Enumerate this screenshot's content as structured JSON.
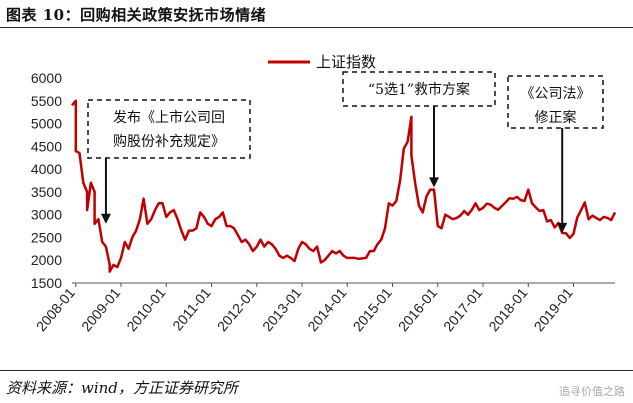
{
  "figure": {
    "title": "图表 10：回购相关政策安抚市场情绪",
    "source": "资料来源：wind，方正证券研究所",
    "watermark": "追寻价值之路"
  },
  "chart_data": {
    "type": "line",
    "series": [
      {
        "name": "上证指数",
        "color": "#c00000",
        "points": [
          [
            "2007-12",
            5400
          ],
          [
            "2008-01",
            5500
          ],
          [
            "2008-01",
            4400
          ],
          [
            "2008-02",
            4350
          ],
          [
            "2008-03",
            3700
          ],
          [
            "2008-04",
            3500
          ],
          [
            "2008-04",
            3100
          ],
          [
            "2008-05",
            3700
          ],
          [
            "2008-06",
            3500
          ],
          [
            "2008-06",
            2800
          ],
          [
            "2008-07",
            2900
          ],
          [
            "2008-08",
            2400
          ],
          [
            "2008-09",
            2300
          ],
          [
            "2008-10",
            1900
          ],
          [
            "2008-10",
            1750
          ],
          [
            "2008-11",
            1900
          ],
          [
            "2008-12",
            1850
          ],
          [
            "2009-01",
            2050
          ],
          [
            "2009-02",
            2400
          ],
          [
            "2009-03",
            2250
          ],
          [
            "2009-04",
            2500
          ],
          [
            "2009-05",
            2650
          ],
          [
            "2009-06",
            2900
          ],
          [
            "2009-07",
            3350
          ],
          [
            "2009-08",
            2800
          ],
          [
            "2009-09",
            2900
          ],
          [
            "2009-10",
            3100
          ],
          [
            "2009-11",
            3250
          ],
          [
            "2009-12",
            3250
          ],
          [
            "2010-01",
            2950
          ],
          [
            "2010-02",
            3050
          ],
          [
            "2010-03",
            3100
          ],
          [
            "2010-04",
            2900
          ],
          [
            "2010-05",
            2650
          ],
          [
            "2010-06",
            2450
          ],
          [
            "2010-07",
            2650
          ],
          [
            "2010-08",
            2650
          ],
          [
            "2010-09",
            2700
          ],
          [
            "2010-10",
            3050
          ],
          [
            "2010-11",
            2950
          ],
          [
            "2010-12",
            2800
          ],
          [
            "2011-01",
            2750
          ],
          [
            "2011-02",
            2900
          ],
          [
            "2011-03",
            2950
          ],
          [
            "2011-04",
            3050
          ],
          [
            "2011-05",
            2750
          ],
          [
            "2011-06",
            2750
          ],
          [
            "2011-07",
            2700
          ],
          [
            "2011-08",
            2550
          ],
          [
            "2011-09",
            2400
          ],
          [
            "2011-10",
            2450
          ],
          [
            "2011-11",
            2350
          ],
          [
            "2011-12",
            2200
          ],
          [
            "2012-01",
            2300
          ],
          [
            "2012-02",
            2450
          ],
          [
            "2012-03",
            2300
          ],
          [
            "2012-04",
            2400
          ],
          [
            "2012-05",
            2350
          ],
          [
            "2012-06",
            2250
          ],
          [
            "2012-07",
            2100
          ],
          [
            "2012-08",
            2050
          ],
          [
            "2012-09",
            2100
          ],
          [
            "2012-10",
            2050
          ],
          [
            "2012-11",
            1980
          ],
          [
            "2012-12",
            2250
          ],
          [
            "2013-01",
            2400
          ],
          [
            "2013-02",
            2350
          ],
          [
            "2013-03",
            2250
          ],
          [
            "2013-04",
            2200
          ],
          [
            "2013-05",
            2300
          ],
          [
            "2013-06",
            1950
          ],
          [
            "2013-07",
            2000
          ],
          [
            "2013-08",
            2100
          ],
          [
            "2013-09",
            2200
          ],
          [
            "2013-10",
            2150
          ],
          [
            "2013-11",
            2200
          ],
          [
            "2013-12",
            2100
          ],
          [
            "2014-01",
            2050
          ],
          [
            "2014-02",
            2050
          ],
          [
            "2014-03",
            2050
          ],
          [
            "2014-04",
            2030
          ],
          [
            "2014-05",
            2040
          ],
          [
            "2014-06",
            2050
          ],
          [
            "2014-07",
            2200
          ],
          [
            "2014-08",
            2200
          ],
          [
            "2014-09",
            2350
          ],
          [
            "2014-10",
            2450
          ],
          [
            "2014-11",
            2700
          ],
          [
            "2014-12",
            3250
          ],
          [
            "2015-01",
            3200
          ],
          [
            "2015-02",
            3300
          ],
          [
            "2015-03",
            3750
          ],
          [
            "2015-04",
            4450
          ],
          [
            "2015-05",
            4600
          ],
          [
            "2015-06",
            5150
          ],
          [
            "2015-06",
            4300
          ],
          [
            "2015-07",
            3700
          ],
          [
            "2015-08",
            3200
          ],
          [
            "2015-09",
            3050
          ],
          [
            "2015-10",
            3400
          ],
          [
            "2015-11",
            3550
          ],
          [
            "2015-12",
            3550
          ],
          [
            "2016-01",
            2750
          ],
          [
            "2016-02",
            2700
          ],
          [
            "2016-03",
            3000
          ],
          [
            "2016-04",
            2950
          ],
          [
            "2016-05",
            2900
          ],
          [
            "2016-06",
            2930
          ],
          [
            "2016-07",
            2980
          ],
          [
            "2016-08",
            3080
          ],
          [
            "2016-09",
            3000
          ],
          [
            "2016-10",
            3100
          ],
          [
            "2016-11",
            3250
          ],
          [
            "2016-12",
            3100
          ],
          [
            "2017-01",
            3150
          ],
          [
            "2017-02",
            3240
          ],
          [
            "2017-03",
            3220
          ],
          [
            "2017-04",
            3150
          ],
          [
            "2017-05",
            3110
          ],
          [
            "2017-06",
            3190
          ],
          [
            "2017-07",
            3270
          ],
          [
            "2017-08",
            3360
          ],
          [
            "2017-09",
            3350
          ],
          [
            "2017-10",
            3390
          ],
          [
            "2017-11",
            3320
          ],
          [
            "2017-12",
            3300
          ],
          [
            "2018-01",
            3550
          ],
          [
            "2018-02",
            3250
          ],
          [
            "2018-03",
            3160
          ],
          [
            "2018-04",
            3080
          ],
          [
            "2018-05",
            3100
          ],
          [
            "2018-06",
            2850
          ],
          [
            "2018-07",
            2880
          ],
          [
            "2018-08",
            2720
          ],
          [
            "2018-09",
            2820
          ],
          [
            "2018-10",
            2600
          ],
          [
            "2018-11",
            2590
          ],
          [
            "2018-12",
            2490
          ],
          [
            "2019-01",
            2580
          ],
          [
            "2019-02",
            2940
          ],
          [
            "2019-03",
            3100
          ],
          [
            "2019-04",
            3270
          ],
          [
            "2019-05",
            2900
          ],
          [
            "2019-06",
            2980
          ],
          [
            "2019-07",
            2930
          ],
          [
            "2019-08",
            2880
          ],
          [
            "2019-09",
            2950
          ],
          [
            "2019-10",
            2930
          ],
          [
            "2019-11",
            2880
          ],
          [
            "2019-12",
            3050
          ]
        ]
      }
    ],
    "xlabel": "",
    "ylabel": "",
    "ylim": [
      1500,
      6000
    ],
    "yticks": [
      1500,
      2000,
      2500,
      3000,
      3500,
      4000,
      4500,
      5000,
      5500,
      6000
    ],
    "xlim": [
      "2007-12",
      "2019-12"
    ],
    "xticks": [
      "2008-01",
      "2009-01",
      "2010-01",
      "2011-01",
      "2012-01",
      "2013-01",
      "2014-01",
      "2015-01",
      "2016-01",
      "2017-01",
      "2018-01",
      "2019-01"
    ],
    "legend": {
      "position": "top-center",
      "label": "上证指数"
    },
    "grid": false,
    "annotations": [
      {
        "lines": [
          "发布《上市公司回",
          "购股份补充规定》"
        ],
        "target_date": "2008-09",
        "target_value": 2800
      },
      {
        "lines": [
          "“5选1”救市方案"
        ],
        "target_date": "2015-12",
        "target_value": 3600
      },
      {
        "lines": [
          "《公司法》",
          "修正案"
        ],
        "target_date": "2018-10",
        "target_value": 2600
      }
    ]
  }
}
